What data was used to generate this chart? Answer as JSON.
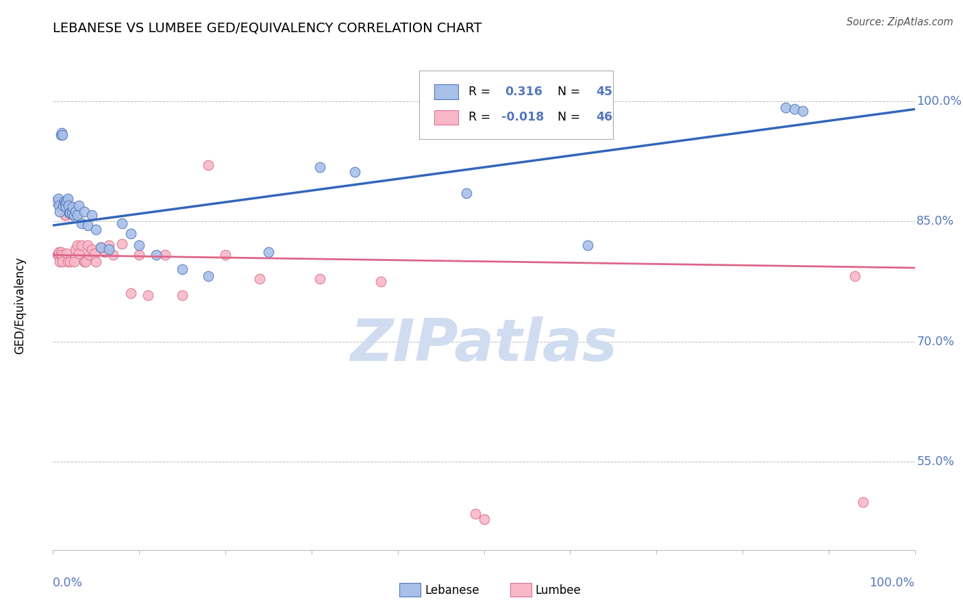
{
  "title": "LEBANESE VS LUMBEE GED/EQUIVALENCY CORRELATION CHART",
  "source": "Source: ZipAtlas.com",
  "ylabel": "GED/Equivalency",
  "ytick_labels": [
    "55.0%",
    "70.0%",
    "85.0%",
    "100.0%"
  ],
  "ytick_values": [
    0.55,
    0.7,
    0.85,
    1.0
  ],
  "xlim": [
    0.0,
    1.0
  ],
  "ylim": [
    0.44,
    1.05
  ],
  "legend_blue_R": "0.316",
  "legend_blue_N": "45",
  "legend_pink_R": "-0.018",
  "legend_pink_N": "46",
  "blue_fill": "#A8C0E8",
  "blue_edge": "#5577BB",
  "pink_fill": "#F8B8C8",
  "pink_edge": "#DD7090",
  "blue_line_color": "#3366BB",
  "pink_line_color": "#DD6688",
  "watermark_text": "ZIPatlas",
  "watermark_color": "#D0DCF0",
  "blue_x": [
    0.004,
    0.006,
    0.007,
    0.008,
    0.009,
    0.01,
    0.011,
    0.012,
    0.013,
    0.014,
    0.015,
    0.016,
    0.017,
    0.018,
    0.019,
    0.02,
    0.022,
    0.023,
    0.024,
    0.026,
    0.028,
    0.03,
    0.033,
    0.036,
    0.04,
    0.045,
    0.05,
    0.055,
    0.065,
    0.08,
    0.09,
    0.1,
    0.12,
    0.15,
    0.18,
    0.25,
    0.31,
    0.35,
    0.48,
    0.51,
    0.52,
    0.62,
    0.85,
    0.86,
    0.87
  ],
  "blue_y": [
    0.875,
    0.878,
    0.87,
    0.862,
    0.958,
    0.96,
    0.958,
    0.87,
    0.875,
    0.872,
    0.868,
    0.875,
    0.878,
    0.87,
    0.86,
    0.86,
    0.86,
    0.868,
    0.858,
    0.862,
    0.858,
    0.87,
    0.848,
    0.862,
    0.845,
    0.858,
    0.84,
    0.818,
    0.815,
    0.848,
    0.835,
    0.82,
    0.808,
    0.79,
    0.782,
    0.812,
    0.918,
    0.912,
    0.885,
    0.992,
    0.99,
    0.82,
    0.992,
    0.99,
    0.988
  ],
  "pink_x": [
    0.005,
    0.006,
    0.007,
    0.008,
    0.009,
    0.01,
    0.011,
    0.012,
    0.014,
    0.015,
    0.016,
    0.017,
    0.018,
    0.02,
    0.022,
    0.024,
    0.026,
    0.028,
    0.03,
    0.033,
    0.036,
    0.038,
    0.04,
    0.042,
    0.045,
    0.048,
    0.05,
    0.055,
    0.06,
    0.065,
    0.07,
    0.08,
    0.09,
    0.1,
    0.11,
    0.13,
    0.15,
    0.18,
    0.2,
    0.24,
    0.31,
    0.38,
    0.49,
    0.5,
    0.93,
    0.94
  ],
  "pink_y": [
    0.808,
    0.81,
    0.812,
    0.8,
    0.812,
    0.808,
    0.8,
    0.87,
    0.858,
    0.858,
    0.81,
    0.8,
    0.87,
    0.8,
    0.858,
    0.8,
    0.815,
    0.82,
    0.81,
    0.82,
    0.8,
    0.8,
    0.82,
    0.808,
    0.815,
    0.81,
    0.8,
    0.818,
    0.812,
    0.82,
    0.808,
    0.822,
    0.76,
    0.808,
    0.758,
    0.808,
    0.758,
    0.92,
    0.808,
    0.778,
    0.778,
    0.775,
    0.485,
    0.478,
    0.782,
    0.5
  ],
  "blue_trend_x": [
    0.0,
    1.0
  ],
  "blue_trend_y": [
    0.845,
    0.99
  ],
  "pink_trend_x": [
    0.0,
    1.0
  ],
  "pink_trend_y": [
    0.808,
    0.792
  ]
}
